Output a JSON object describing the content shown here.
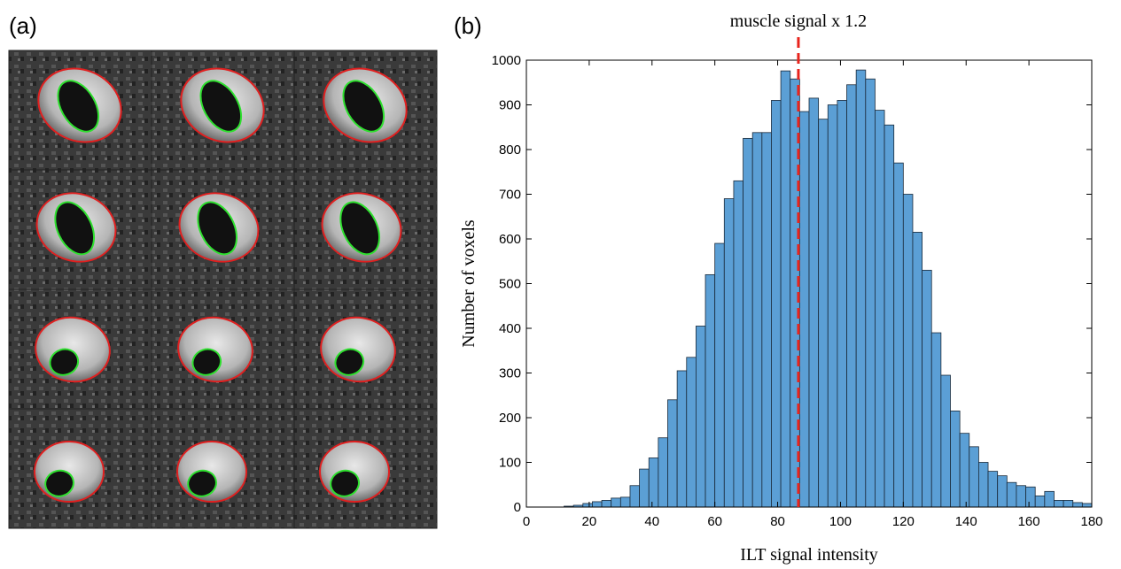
{
  "figure": {
    "left_label": "(a)",
    "right_label": "(b)"
  },
  "chart_data": {
    "type": "histogram",
    "xlabel": "ILT signal intensity",
    "ylabel": "Number of voxels",
    "color": "#5b9fd5",
    "edgecolor": "#1a2a3a",
    "bins": [
      12,
      15,
      18,
      21,
      24,
      27,
      30,
      33,
      36,
      39,
      42,
      45,
      48,
      51,
      54,
      57,
      60,
      63,
      66,
      69,
      72,
      75,
      78,
      81,
      84,
      87,
      90,
      93,
      96,
      99,
      102,
      105,
      108,
      111,
      114,
      117,
      120,
      123,
      126,
      129,
      132,
      135,
      138,
      141,
      144,
      147,
      150,
      153,
      156,
      159,
      162,
      165,
      168,
      171,
      174,
      177,
      180
    ],
    "values": [
      2,
      4,
      8,
      12,
      15,
      20,
      22,
      48,
      85,
      110,
      155,
      240,
      305,
      335,
      405,
      520,
      590,
      690,
      730,
      825,
      838,
      838,
      910,
      976,
      958,
      885,
      915,
      868,
      900,
      910,
      945,
      978,
      958,
      888,
      855,
      770,
      700,
      615,
      530,
      390,
      295,
      215,
      165,
      135,
      100,
      80,
      70,
      55,
      48,
      45,
      25,
      35,
      15,
      15,
      10,
      8
    ],
    "xlim": [
      0,
      180
    ],
    "xticks": [
      0,
      20,
      40,
      60,
      80,
      100,
      120,
      140,
      160,
      180
    ],
    "ylim": [
      0,
      1000
    ],
    "yticks": [
      0,
      100,
      200,
      300,
      400,
      500,
      600,
      700,
      800,
      900,
      1000
    ],
    "annotations": [
      {
        "text": "muscle signal x 1.2",
        "x": 86.6,
        "color": "#e8241c"
      }
    ]
  }
}
